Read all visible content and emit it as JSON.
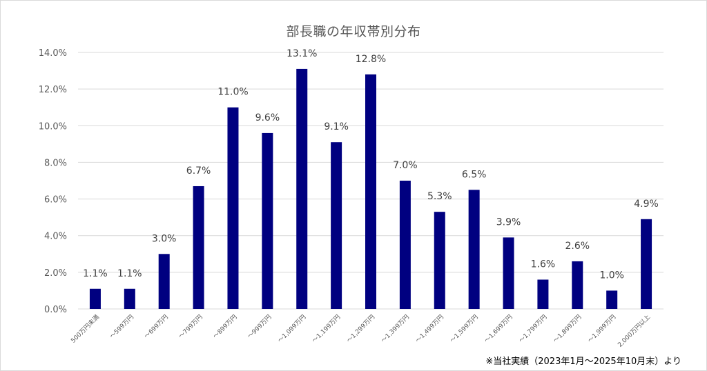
{
  "chart_data": {
    "type": "bar",
    "title": "部長職の年収帯別分布",
    "categories": [
      "500万円未満",
      "～599万円",
      "～699万円",
      "～799万円",
      "～899万円",
      "～999万円",
      "～1,099万円",
      "～1,199万円",
      "～1,299万円",
      "～1,399万円",
      "～1,499万円",
      "～1,599万円",
      "～1,699万円",
      "～1,799万円",
      "～1,899万円",
      "～1,999万円",
      "2,000万円以上"
    ],
    "values": [
      1.1,
      1.1,
      3.0,
      6.7,
      11.0,
      9.6,
      13.1,
      9.1,
      12.8,
      7.0,
      5.3,
      6.5,
      3.9,
      1.6,
      2.6,
      1.0,
      4.9
    ],
    "data_labels": [
      "1.1%",
      "1.1%",
      "3.0%",
      "6.7%",
      "11.0%",
      "9.6%",
      "13.1%",
      "9.1%",
      "12.8%",
      "7.0%",
      "5.3%",
      "6.5%",
      "3.9%",
      "1.6%",
      "2.6%",
      "1.0%",
      "4.9%"
    ],
    "y_ticks": [
      "0.0%",
      "2.0%",
      "4.0%",
      "6.0%",
      "8.0%",
      "10.0%",
      "12.0%",
      "14.0%"
    ],
    "y_tick_values": [
      0,
      2,
      4,
      6,
      8,
      10,
      12,
      14
    ],
    "ylim": [
      0,
      14
    ],
    "xlabel": "",
    "ylabel": "",
    "grid": true,
    "legend": "none",
    "bar_color": "#000080",
    "grid_color": "#d9d9d9",
    "tick_text_color": "#595959",
    "label_text_color": "#404040"
  },
  "footnote": "※当社実績（2023年1月～2025年10月末）より"
}
